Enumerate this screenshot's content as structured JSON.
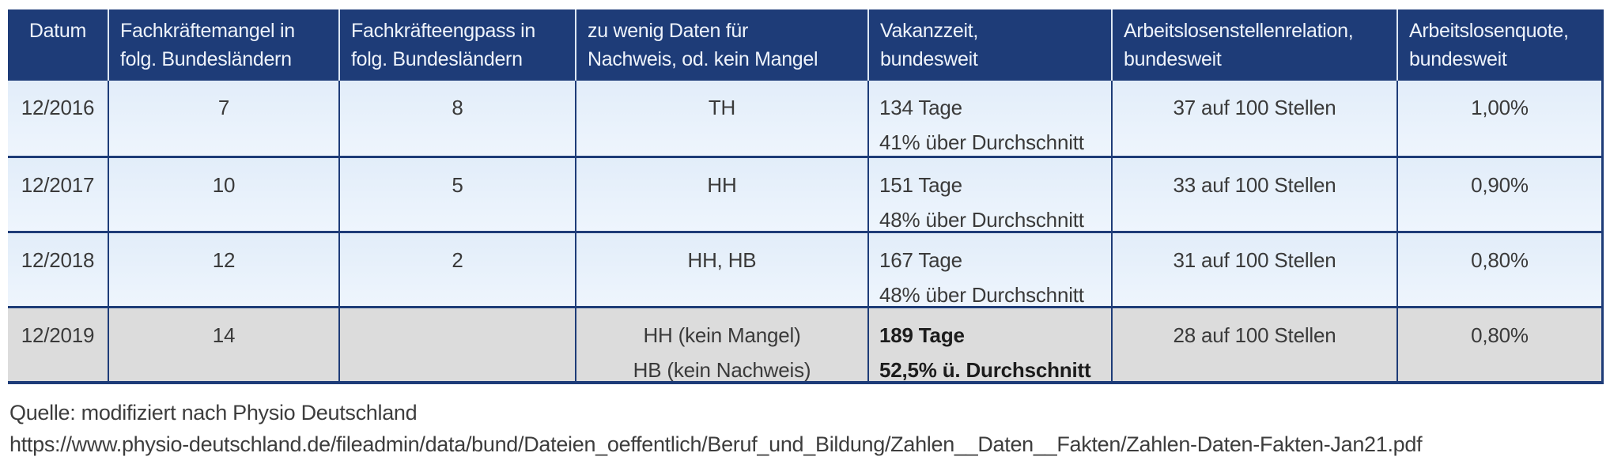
{
  "table": {
    "header": [
      "Datum",
      "Fachkräftemangel in\nfolg. Bundesländern",
      "Fachkräfteengpass in\nfolg. Bundesländern",
      "zu wenig Daten für\nNachweis, od. kein Mangel",
      "Vakanzzeit,\nbundesweit",
      "Arbeitslosenstellenrelation,\nbundesweit",
      "Arbeitslosenquote,\nbundesweit"
    ],
    "rows": [
      {
        "cells": [
          "12/2016",
          "7",
          "8",
          "TH",
          "134 Tage\n41% über Durchschnitt",
          "37 auf 100 Stellen",
          "1,00%"
        ],
        "highlight": false
      },
      {
        "cells": [
          "12/2017",
          "10",
          "5",
          "HH",
          "151 Tage\n48% über Durchschnitt",
          "33 auf 100 Stellen",
          "0,90%"
        ],
        "highlight": false
      },
      {
        "cells": [
          "12/2018",
          "12",
          "2",
          "HH, HB",
          "167 Tage\n48% über Durchschnitt",
          "31 auf 100 Stellen",
          "0,80%"
        ],
        "highlight": false
      },
      {
        "cells": [
          "12/2019",
          "14",
          "",
          "HH (kein Mangel)\nHB (kein Nachweis)",
          "189 Tage\n52,5% ü. Durchschnitt",
          "28 auf 100 Stellen",
          "0,80%"
        ],
        "highlight": true
      }
    ]
  },
  "source": {
    "line1": "Quelle: modifiziert nach Physio Deutschland",
    "line2": "https://www.physio-deutschland.de/fileadmin/data/bund/Dateien_oeffentlich/Beruf_und_Bildung/Zahlen__Daten__Fakten/Zahlen-Daten-Fakten-Jan21.pdf"
  },
  "colors": {
    "header_bg": "#1e3c78",
    "row_bg_top": "#e2edf9",
    "row_bg_bottom": "#eef5fd",
    "highlight_bg": "#dcdcdc",
    "border": "#1e3c78",
    "header_text": "#eef3fb",
    "body_text": "#3a3a3a"
  }
}
